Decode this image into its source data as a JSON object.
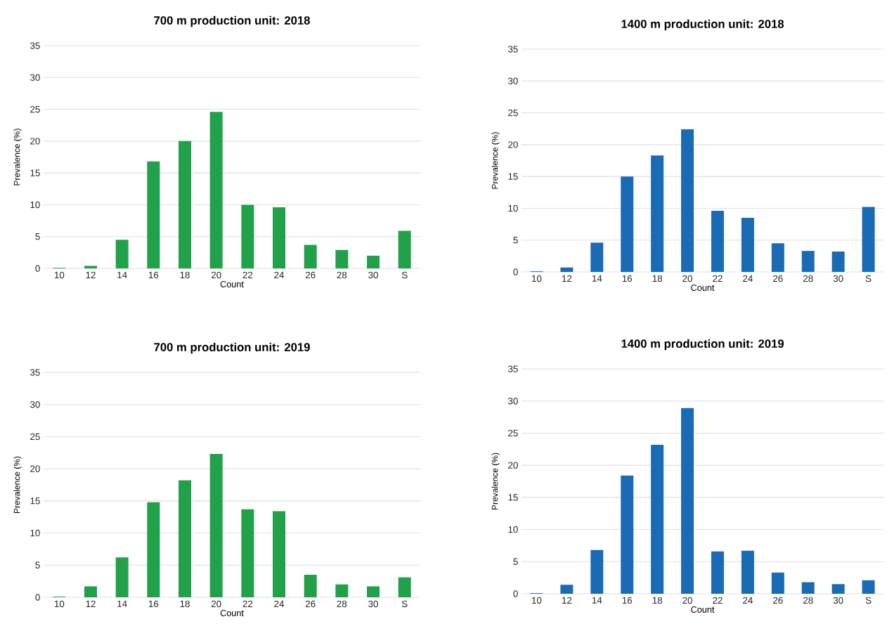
{
  "chart_data": [
    {
      "type": "bar",
      "title": "700 m production unit: 2018",
      "xlabel": "Count",
      "ylabel": "Prevalence (%)",
      "categories": [
        "10",
        "12",
        "14",
        "16",
        "18",
        "20",
        "22",
        "24",
        "26",
        "28",
        "30",
        "S"
      ],
      "values": [
        0.1,
        0.4,
        4.5,
        16.8,
        20,
        24.6,
        10,
        9.6,
        3.7,
        2.9,
        2,
        5.9
      ],
      "color": "#21a24a",
      "ylim": [
        0,
        35
      ],
      "yticks": [
        0,
        5,
        10,
        15,
        20,
        25,
        30,
        35
      ],
      "grid": "y"
    },
    {
      "type": "bar",
      "title": "1400 m production unit: 2018",
      "xlabel": "Count",
      "ylabel": "Prevalence (%)",
      "categories": [
        "10",
        "12",
        "14",
        "16",
        "18",
        "20",
        "22",
        "24",
        "26",
        "28",
        "30",
        "S"
      ],
      "values": [
        0.1,
        0.7,
        4.6,
        15,
        18.3,
        22.4,
        9.6,
        8.5,
        4.5,
        3.3,
        3.2,
        10.2
      ],
      "color": "#1a6bb5",
      "ylim": [
        0,
        35
      ],
      "yticks": [
        0,
        5,
        10,
        15,
        20,
        25,
        30,
        35
      ],
      "grid": "y"
    },
    {
      "type": "bar",
      "title": "700 m production unit: 2019",
      "xlabel": "Count",
      "ylabel": "Prevalence (%)",
      "categories": [
        "10",
        "12",
        "14",
        "16",
        "18",
        "20",
        "22",
        "24",
        "26",
        "28",
        "30",
        "S"
      ],
      "values": [
        0.1,
        1.7,
        6.2,
        14.8,
        18.2,
        22.3,
        13.7,
        13.4,
        3.5,
        2,
        1.7,
        3.1
      ],
      "color": "#21a24a",
      "ylim": [
        0,
        35
      ],
      "yticks": [
        0,
        5,
        10,
        15,
        20,
        25,
        30,
        35
      ],
      "grid": "y"
    },
    {
      "type": "bar",
      "title": "1400 m production unit: 2019",
      "xlabel": "Count",
      "ylabel": "Prevalence (%)",
      "categories": [
        "10",
        "12",
        "14",
        "16",
        "18",
        "20",
        "22",
        "24",
        "26",
        "28",
        "30",
        "S"
      ],
      "values": [
        0.1,
        1.4,
        6.8,
        18.4,
        23.2,
        28.9,
        6.6,
        6.7,
        3.3,
        1.8,
        1.5,
        2.1
      ],
      "color": "#1a6bb5",
      "ylim": [
        0,
        35
      ],
      "yticks": [
        0,
        5,
        10,
        15,
        20,
        25,
        30,
        35
      ],
      "grid": "y"
    }
  ]
}
